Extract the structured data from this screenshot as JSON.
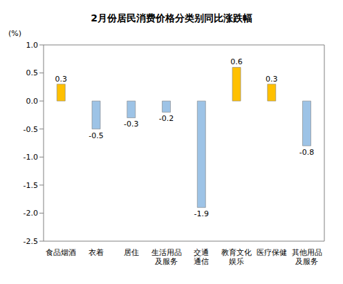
{
  "chart_data": {
    "type": "bar",
    "title": "2月份居民消费价格分类别同比涨跌幅",
    "ylabel": "(%)",
    "categories": [
      "食品烟酒",
      "衣着",
      "居住",
      "生活用品\n及服务",
      "交通\n通信",
      "教育文化\n娱乐",
      "医疗保健",
      "其他用品\n及服务"
    ],
    "values": [
      0.3,
      -0.5,
      -0.3,
      -0.2,
      -1.9,
      0.6,
      0.3,
      -0.8
    ],
    "colors": [
      "#FFC000",
      "#9DC3E6",
      "#9DC3E6",
      "#9DC3E6",
      "#9DC3E6",
      "#FFC000",
      "#FFC000",
      "#9DC3E6"
    ],
    "ylim": [
      -2.5,
      1.0
    ],
    "yticks": [
      {
        "value": -2.5,
        "label": "-2.5"
      },
      {
        "value": -2,
        "label": "-2.0"
      },
      {
        "value": -1.5,
        "label": "-1.5"
      },
      {
        "value": -1,
        "label": "-1.0"
      },
      {
        "value": -0.5,
        "label": "-0.5"
      },
      {
        "value": 0,
        "label": "0.0"
      },
      {
        "value": 0.5,
        "label": "0.5"
      },
      {
        "value": 1,
        "label": "1.0"
      }
    ],
    "grid": false,
    "data_labels": true
  }
}
